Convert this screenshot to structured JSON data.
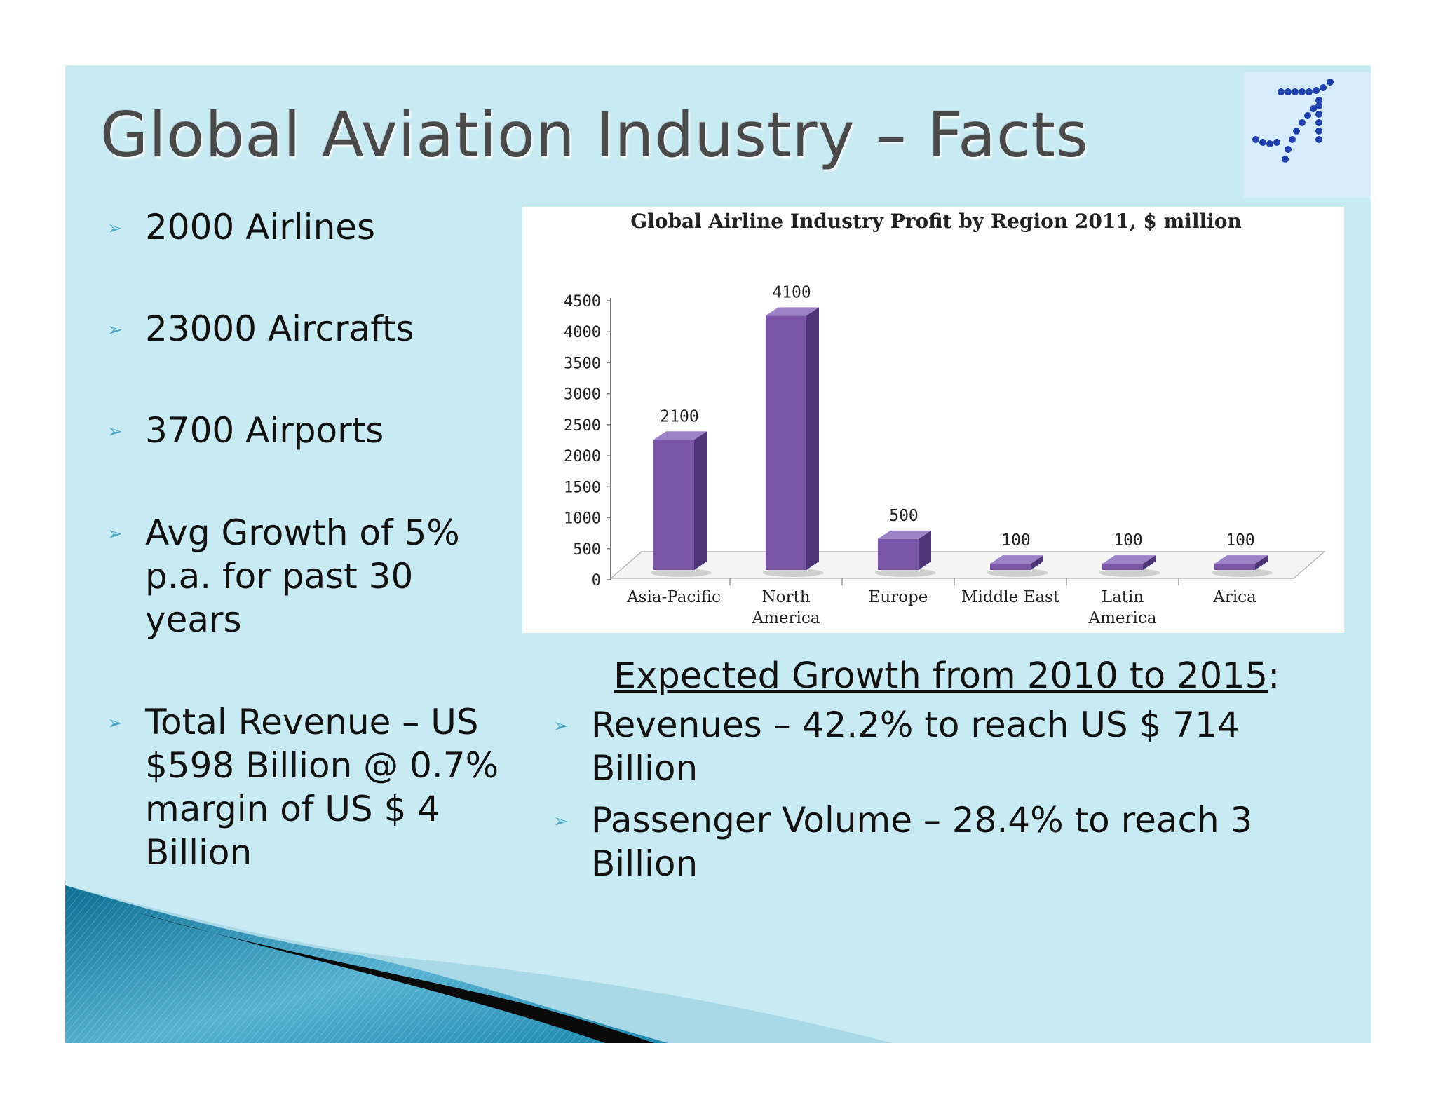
{
  "title": "Global Aviation Industry – Facts",
  "logo": {
    "icon": "dotted-airplane-icon",
    "color": "#1f3fae"
  },
  "left_bullets": [
    "2000 Airlines",
    "23000 Aircrafts",
    "3700 Airports",
    "Avg Growth of 5% p.a. for past 30 years",
    "Total Revenue – US $598 Billion @ 0.7% margin of US $ 4 Billion"
  ],
  "bullet_icon": "arrowhead-bullet-icon",
  "chart_data": {
    "type": "bar",
    "title": "Global Airline Industry Profit by Region 2011, $ million",
    "categories": [
      "Asia-Pacific",
      "North America",
      "Europe",
      "Middle East",
      "Latin America",
      "Arica"
    ],
    "values": [
      2100,
      4100,
      500,
      100,
      100,
      100
    ],
    "data_labels": [
      "2100",
      "4100",
      "500",
      "100",
      "100",
      "100"
    ],
    "ylim": [
      0,
      4500
    ],
    "yticks": [
      0,
      500,
      1000,
      1500,
      2000,
      2500,
      3000,
      3500,
      4000,
      4500
    ],
    "xlabel": "",
    "ylabel": "",
    "grid": false,
    "legend": "none",
    "style": "3d-column",
    "bar_color": "#7a55a8"
  },
  "growth": {
    "heading": "Expected Growth from 2010 to 2015",
    "heading_suffix": ":",
    "bullets": [
      "Revenues – 42.2% to reach US $ 714 Billion",
      "Passenger Volume – 28.4% to reach 3 Billion"
    ]
  },
  "colors": {
    "slide_background": "#c8eaf2",
    "title_text": "#4a4a4a",
    "bullet_arrow": "#4da6c7",
    "swoosh_dark": "#0d6f93"
  }
}
